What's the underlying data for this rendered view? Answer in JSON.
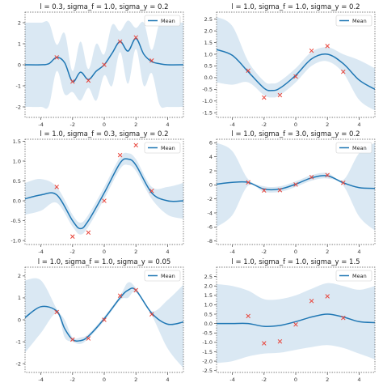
{
  "chart_data": [
    {
      "type": "line",
      "title": "l = 0.3, sigma_f = 1.0, sigma_y = 0.2",
      "xlim": [
        -5,
        5
      ],
      "ylim": [
        -2.5,
        2.5
      ],
      "xticks": [
        -4,
        -2,
        0,
        2,
        4
      ],
      "yticks": [
        -2,
        -1,
        0,
        1,
        2
      ],
      "legend": "Mean",
      "legend_position": "top-right",
      "series": [
        {
          "name": "Mean",
          "x": [
            -5,
            -4.0,
            -3.5,
            -3.0,
            -2.5,
            -2.0,
            -1.5,
            -1.0,
            -0.5,
            0.0,
            0.5,
            1.0,
            1.5,
            2.0,
            2.5,
            3.0,
            3.5,
            4.0,
            5
          ],
          "y": [
            0,
            0,
            0.05,
            0.35,
            0.1,
            -0.8,
            -0.35,
            -0.7,
            -0.3,
            0.0,
            0.55,
            1.1,
            0.65,
            1.25,
            0.5,
            0.15,
            0.05,
            0,
            0
          ]
        },
        {
          "name": "band_lower",
          "x": [
            -5,
            -4.0,
            -3.5,
            -3.0,
            -2.5,
            -2.0,
            -1.5,
            -1.0,
            -0.5,
            0.0,
            0.5,
            1.0,
            1.5,
            2.0,
            2.5,
            3.0,
            3.5,
            4.0,
            5
          ],
          "y": [
            -2,
            -2,
            -1.95,
            -0.3,
            -1.4,
            -1.3,
            -1.7,
            -1.1,
            -1.7,
            -0.5,
            -1.0,
            0.6,
            -0.9,
            0.75,
            -1.0,
            -0.4,
            -1.9,
            -2,
            -2
          ]
        },
        {
          "name": "band_upper",
          "x": [
            -5,
            -4.0,
            -3.5,
            -3.0,
            -2.5,
            -2.0,
            -1.5,
            -1.0,
            -0.5,
            0.0,
            0.5,
            1.0,
            1.5,
            2.0,
            2.5,
            3.0,
            3.5,
            4.0,
            5
          ],
          "y": [
            2,
            2,
            2.0,
            0.95,
            1.5,
            -0.3,
            1.1,
            -0.2,
            1.0,
            0.5,
            1.9,
            1.6,
            2.1,
            1.75,
            2.0,
            0.7,
            2.0,
            2,
            2
          ]
        }
      ],
      "points": {
        "x": [
          -3.0,
          -2.0,
          -1.0,
          0.0,
          1.0,
          2.0,
          3.0
        ],
        "y": [
          0.35,
          -0.8,
          -0.75,
          0.0,
          1.1,
          1.3,
          0.2
        ]
      }
    },
    {
      "type": "line",
      "title": "l = 1.0, sigma_f = 1.0, sigma_y = 0.2",
      "xlim": [
        -5,
        5
      ],
      "ylim": [
        -1.7,
        2.8
      ],
      "xticks": [
        -4,
        -2,
        0,
        2,
        4
      ],
      "yticks": [
        -1.5,
        -1.0,
        -0.5,
        0.0,
        0.5,
        1.0,
        1.5,
        2.0,
        2.5
      ],
      "legend": "Mean",
      "legend_position": "top-right",
      "series": [
        {
          "name": "Mean",
          "x": [
            -5,
            -4.0,
            -3.0,
            -2.0,
            -1.5,
            -1.0,
            0.0,
            1.0,
            2.0,
            3.0,
            4.0,
            5
          ],
          "y": [
            1.2,
            0.95,
            0.25,
            -0.45,
            -0.55,
            -0.45,
            0.1,
            0.8,
            1.0,
            0.6,
            -0.1,
            -0.5
          ]
        },
        {
          "name": "band_lower",
          "x": [
            -5,
            -4.0,
            -3.0,
            -2.0,
            -1.5,
            -1.0,
            0.0,
            1.0,
            2.0,
            3.0,
            4.0,
            5
          ],
          "y": [
            -0.2,
            -0.3,
            -0.2,
            -0.75,
            -0.85,
            -0.75,
            -0.2,
            0.5,
            0.7,
            0.2,
            -0.95,
            -1.4
          ]
        },
        {
          "name": "band_upper",
          "x": [
            -5,
            -4.0,
            -3.0,
            -2.0,
            -1.5,
            -1.0,
            0.0,
            1.0,
            2.0,
            3.0,
            4.0,
            5
          ],
          "y": [
            2.6,
            2.2,
            0.7,
            -0.15,
            -0.25,
            -0.15,
            0.4,
            1.1,
            1.3,
            1.0,
            0.75,
            0.4
          ]
        }
      ],
      "points": {
        "x": [
          -3.0,
          -2.0,
          -1.0,
          0.0,
          1.0,
          2.0,
          3.0
        ],
        "y": [
          0.3,
          -0.85,
          -0.75,
          0.05,
          1.15,
          1.35,
          0.25
        ]
      }
    },
    {
      "type": "line",
      "title": "l = 1.0, sigma_f = 0.3, sigma_y = 0.2",
      "xlim": [
        -5,
        5
      ],
      "ylim": [
        -1.1,
        1.55
      ],
      "xticks": [
        -4,
        -2,
        0,
        2,
        4
      ],
      "yticks": [
        -1.0,
        -0.5,
        0.0,
        0.5,
        1.0,
        1.5
      ],
      "legend": "Mean",
      "legend_position": "top-right",
      "series": [
        {
          "name": "Mean",
          "x": [
            -5,
            -4.0,
            -3.0,
            -2.0,
            -1.5,
            -1.0,
            0.0,
            1.0,
            1.5,
            2.0,
            3.0,
            4.0,
            5
          ],
          "y": [
            0.05,
            0.15,
            0.15,
            -0.5,
            -0.7,
            -0.5,
            0.2,
            0.95,
            1.05,
            0.9,
            0.2,
            0,
            0
          ]
        },
        {
          "name": "band_lower",
          "x": [
            -5,
            -4.0,
            -3.0,
            -2.0,
            -1.5,
            -1.0,
            0.0,
            1.0,
            1.5,
            2.0,
            3.0,
            4.0,
            5
          ],
          "y": [
            -0.35,
            -0.25,
            -0.05,
            -0.65,
            -0.85,
            -0.65,
            0.05,
            0.8,
            0.9,
            0.75,
            0.05,
            -0.35,
            -0.45
          ]
        },
        {
          "name": "band_upper",
          "x": [
            -5,
            -4.0,
            -3.0,
            -2.0,
            -1.5,
            -1.0,
            0.0,
            1.0,
            1.5,
            2.0,
            3.0,
            4.0,
            5
          ],
          "y": [
            0.45,
            0.55,
            0.35,
            -0.35,
            -0.55,
            -0.35,
            0.35,
            1.1,
            1.2,
            1.05,
            0.35,
            0.35,
            0.45
          ]
        }
      ],
      "points": {
        "x": [
          -3.0,
          -2.0,
          -1.0,
          0.0,
          1.0,
          2.0,
          3.0
        ],
        "y": [
          0.35,
          -0.9,
          -0.8,
          0.0,
          1.15,
          1.4,
          0.25
        ]
      }
    },
    {
      "type": "line",
      "title": "l = 1.0, sigma_f = 3.0, sigma_y = 0.2",
      "xlim": [
        -5,
        5
      ],
      "ylim": [
        -8.5,
        6.5
      ],
      "xticks": [
        -4,
        -2,
        0,
        2,
        4
      ],
      "yticks": [
        -8,
        -6,
        -4,
        -2,
        0,
        2,
        4,
        6
      ],
      "legend": "Mean",
      "legend_position": "top-right",
      "series": [
        {
          "name": "Mean",
          "x": [
            -5,
            -4.0,
            -3.0,
            -2.0,
            -1.0,
            0.0,
            1.0,
            2.0,
            3.0,
            4.0,
            5
          ],
          "y": [
            0.1,
            0.35,
            0.35,
            -0.6,
            -0.6,
            0.1,
            1.0,
            1.3,
            0.3,
            -0.4,
            -0.5
          ]
        },
        {
          "name": "band_lower",
          "x": [
            -5,
            -4.0,
            -3.0,
            -2.0,
            -1.0,
            0.0,
            1.0,
            2.0,
            3.0,
            4.0,
            5
          ],
          "y": [
            -6.0,
            -4.3,
            -0.1,
            -1.0,
            -1.0,
            -0.3,
            0.6,
            0.9,
            -0.1,
            -4.5,
            -6.5
          ]
        },
        {
          "name": "band_upper",
          "x": [
            -5,
            -4.0,
            -3.0,
            -2.0,
            -1.0,
            0.0,
            1.0,
            2.0,
            3.0,
            4.0,
            5
          ],
          "y": [
            6.0,
            4.8,
            0.8,
            -0.2,
            -0.2,
            0.5,
            1.4,
            1.7,
            0.7,
            4.5,
            6.0
          ]
        }
      ],
      "points": {
        "x": [
          -3.0,
          -2.0,
          -1.0,
          0.0,
          1.0,
          2.0,
          3.0
        ],
        "y": [
          0.35,
          -0.8,
          -0.75,
          0.05,
          1.1,
          1.4,
          0.3
        ]
      }
    },
    {
      "type": "line",
      "title": "l = 1.0, sigma_f = 1.0, sigma_y = 0.05",
      "xlim": [
        -5,
        5
      ],
      "ylim": [
        -2.4,
        2.4
      ],
      "xticks": [
        -4,
        -2,
        0,
        2,
        4
      ],
      "yticks": [
        -2,
        -1,
        0,
        1,
        2
      ],
      "legend": "Mean",
      "legend_position": "top-right",
      "series": [
        {
          "name": "Mean",
          "x": [
            -5,
            -4.0,
            -3.0,
            -2.5,
            -2.0,
            -1.5,
            -1.0,
            0.0,
            1.0,
            1.5,
            2.0,
            3.0,
            4.0,
            5
          ],
          "y": [
            0.1,
            0.6,
            0.4,
            -0.4,
            -0.9,
            -0.95,
            -0.75,
            0.05,
            1.0,
            1.35,
            1.35,
            0.3,
            -0.2,
            -0.1
          ]
        },
        {
          "name": "band_lower",
          "x": [
            -5,
            -4.0,
            -3.0,
            -2.5,
            -2.0,
            -1.5,
            -1.0,
            0.0,
            1.0,
            1.5,
            2.0,
            3.0,
            4.0,
            5
          ],
          "y": [
            -1.5,
            -0.6,
            0.3,
            -0.8,
            -1.0,
            -1.1,
            -0.85,
            -0.05,
            0.9,
            1.0,
            1.25,
            0.2,
            -1.3,
            -2.2
          ]
        },
        {
          "name": "band_upper",
          "x": [
            -5,
            -4.0,
            -3.0,
            -2.5,
            -2.0,
            -1.5,
            -1.0,
            0.0,
            1.0,
            1.5,
            2.0,
            3.0,
            4.0,
            5
          ],
          "y": [
            1.8,
            1.8,
            0.5,
            0.0,
            -0.8,
            -0.8,
            -0.65,
            0.15,
            1.1,
            1.7,
            1.45,
            0.4,
            0.9,
            1.6
          ]
        }
      ],
      "points": {
        "x": [
          -3.0,
          -2.0,
          -1.0,
          0.0,
          1.0,
          2.0,
          3.0
        ],
        "y": [
          0.35,
          -0.9,
          -0.85,
          0.0,
          1.1,
          1.35,
          0.25
        ]
      }
    },
    {
      "type": "line",
      "title": "l = 1.0, sigma_f = 1.0, sigma_y = 1.5",
      "xlim": [
        -5,
        5
      ],
      "ylim": [
        -2.6,
        3.0
      ],
      "xticks": [
        -4,
        -2,
        0,
        2,
        4
      ],
      "yticks": [
        -2.5,
        -2.0,
        -1.5,
        -1.0,
        -0.5,
        0.0,
        0.5,
        1.0,
        1.5,
        2.0,
        2.5
      ],
      "legend": "Mean",
      "legend_position": "top-right",
      "series": [
        {
          "name": "Mean",
          "x": [
            -5,
            -4.0,
            -3.0,
            -2.0,
            -1.0,
            0.0,
            1.0,
            2.0,
            3.0,
            4.0,
            5
          ],
          "y": [
            0.0,
            0.0,
            0.0,
            -0.15,
            -0.1,
            0.1,
            0.35,
            0.5,
            0.35,
            0.1,
            0.05
          ]
        },
        {
          "name": "band_lower",
          "x": [
            -5,
            -4.0,
            -3.0,
            -2.0,
            -1.0,
            0.0,
            1.0,
            2.0,
            3.0,
            4.0,
            5
          ],
          "y": [
            -2.1,
            -2.0,
            -1.75,
            -1.6,
            -1.55,
            -1.4,
            -1.25,
            -1.15,
            -1.3,
            -1.6,
            -1.9
          ]
        },
        {
          "name": "band_upper",
          "x": [
            -5,
            -4.0,
            -3.0,
            -2.0,
            -1.0,
            0.0,
            1.0,
            2.0,
            3.0,
            4.0,
            5
          ],
          "y": [
            2.1,
            2.0,
            1.75,
            1.3,
            1.3,
            1.5,
            1.85,
            2.15,
            2.0,
            1.8,
            2.0
          ]
        }
      ],
      "points": {
        "x": [
          -3.0,
          -2.0,
          -1.0,
          0.0,
          1.0,
          2.0,
          3.0
        ],
        "y": [
          0.4,
          -1.05,
          -0.95,
          -0.05,
          1.2,
          1.45,
          0.3
        ]
      }
    }
  ],
  "colors": {
    "mean": "#1f77b4",
    "band": "#d6e6f2",
    "points": "#e8443a"
  }
}
